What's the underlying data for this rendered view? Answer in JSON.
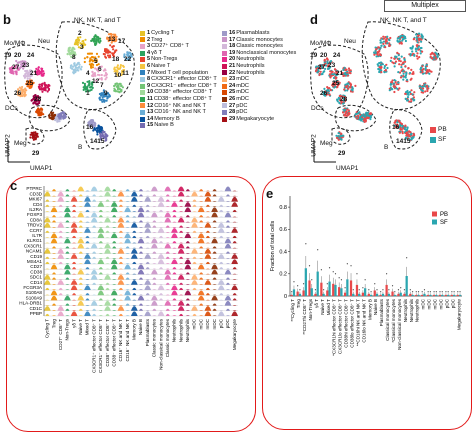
{
  "header": {
    "label": "Multiplex"
  },
  "panel_b": {
    "letter": "b",
    "xlabel": "UMAP1",
    "ylabel": "UMAP2",
    "group_labels": [
      "Mo/MΦ",
      "Neu",
      "NK, NK T, and T",
      "DCs",
      "Meg",
      "B"
    ],
    "cluster_numbers": [
      "19",
      "20",
      "24",
      "23",
      "21",
      "25",
      "27",
      "26",
      "28",
      "29",
      "16",
      "1415",
      "2",
      "3",
      "5",
      "4",
      "6",
      "8",
      "12",
      "7",
      "9",
      "1",
      "10",
      "11",
      "18",
      "13",
      "17",
      "22"
    ]
  },
  "legend": {
    "items": [
      {
        "num": "1",
        "label": "Cycling T",
        "color": "#e6c229"
      },
      {
        "num": "2",
        "label": "Treg",
        "color": "#f08c00"
      },
      {
        "num": "3",
        "label": "CD27⁺ CD8⁺ T",
        "color": "#e8a3c8"
      },
      {
        "num": "4",
        "label": "γδ T",
        "color": "#2ca25f"
      },
      {
        "num": "5",
        "label": "Non-Tregs",
        "color": "#e8432e"
      },
      {
        "num": "6",
        "label": "Naive T",
        "color": "#f5c542"
      },
      {
        "num": "7",
        "label": "Mixed T cell population",
        "color": "#3182bd"
      },
      {
        "num": "8",
        "label": "CX3CR1⁺ effector CD8⁺ T",
        "color": "#9ecae1"
      },
      {
        "num": "9",
        "label": "CX3CR1⁻ effector CD8⁺ T",
        "color": "#74c476"
      },
      {
        "num": "10",
        "label": "CD38⁺ effector CD8⁺ T",
        "color": "#a1d99b"
      },
      {
        "num": "11",
        "label": "CD38⁻ effector CD8⁺ T",
        "color": "#31a354"
      },
      {
        "num": "12",
        "label": "CD16⁺ NK and NK T",
        "color": "#fd8d3c"
      },
      {
        "num": "13",
        "label": "CD16⁻ NK and NK T",
        "color": "#6baed6"
      },
      {
        "num": "14",
        "label": "Memory B",
        "color": "#08519c"
      },
      {
        "num": "15",
        "label": "Naive B",
        "color": "#756bb1"
      },
      {
        "num": "16",
        "label": "Plasmablasts",
        "color": "#9e9ac8"
      },
      {
        "num": "17",
        "label": "Classic monocytes",
        "color": "#c994c7"
      },
      {
        "num": "18",
        "label": "Classic monocytes",
        "color": "#d4b9da"
      },
      {
        "num": "19",
        "label": "Nonclassical monocytes",
        "color": "#df65b0"
      },
      {
        "num": "20",
        "label": "Neutrophils",
        "color": "#e7298a"
      },
      {
        "num": "21",
        "label": "Neutrophils",
        "color": "#ce1256"
      },
      {
        "num": "22",
        "label": "Neutrophils",
        "color": "#980043"
      },
      {
        "num": "23",
        "label": "mDC",
        "color": "#fdae6b"
      },
      {
        "num": "24",
        "label": "mDC",
        "color": "#f16913"
      },
      {
        "num": "25",
        "label": "mDC",
        "color": "#d94801"
      },
      {
        "num": "26",
        "label": "mDC",
        "color": "#8c2d04"
      },
      {
        "num": "27",
        "label": "pDC",
        "color": "#bcbddc"
      },
      {
        "num": "28",
        "label": "pDC",
        "color": "#807dba"
      },
      {
        "num": "29",
        "label": "Megakaryocyte",
        "color": "#a50f15"
      }
    ]
  },
  "panel_d": {
    "letter": "d",
    "xlabel": "UMAP1",
    "ylabel": "UMAP2",
    "group_labels": [
      "Mo/MΦ",
      "Neu",
      "NK, NK T, and T",
      "DCs",
      "Meg",
      "B"
    ],
    "cluster_numbers": [
      "19",
      "20",
      "24",
      "23",
      "21",
      "25",
      "27",
      "26",
      "28",
      "29",
      "16",
      "1415"
    ],
    "legend": [
      {
        "label": "PB",
        "color": "#e8484a"
      },
      {
        "label": "SF",
        "color": "#2aa6b0"
      }
    ]
  },
  "panel_c": {
    "letter": "c",
    "genes": [
      "PTPRC",
      "CD3D",
      "MKI67",
      "CD4",
      "IL2RA",
      "FOXP3",
      "CD8A",
      "TRDV2",
      "CCR7",
      "IL7R",
      "KLRG1",
      "CX3CR1",
      "NCAM1",
      "CD19",
      "MS4A1",
      "CD27",
      "CD38",
      "SDC1",
      "CD14",
      "FCGR3A",
      "S100A8",
      "S100A9",
      "HLA-DRB1",
      "CD1C",
      "PPBP"
    ],
    "clusters": [
      "Cycling T",
      "Treg",
      "CD27⁺ CD8⁺ T",
      "Non-Tregs",
      "γδ T",
      "Naive T",
      "Mixed T",
      "CX3CR1⁺ effector CD8⁺ T",
      "CX3CR1⁻ effector CD8⁺ T",
      "CD38⁺ effector CD8⁺ T",
      "CD38⁻ effector CD8⁺ T",
      "CD16⁺ NK and NK T",
      "CD16⁻ NK and NK T",
      "Memory B",
      "Naive B",
      "Plasmablasts",
      "Classic monocytes",
      "Non-classical monocytes",
      "Classic monocytes",
      "Neutrophils",
      "Neutrophils",
      "Neutrophils",
      "mDC",
      "mDC",
      "mDC",
      "mDC",
      "pDC",
      "pDC",
      "Megakaryocyte"
    ]
  },
  "chart_data": {
    "type": "bar",
    "letter": "e",
    "ylabel": "Fraction of total cells",
    "ylim": [
      0,
      0.9
    ],
    "yticks": [
      0,
      0.2,
      0.4,
      0.6,
      0.8
    ],
    "ytick_labels": [
      "0",
      "0.2",
      "0.4",
      "0.6",
      "0.8"
    ],
    "legend_position": "top-right",
    "categories": [
      "**Cycling T",
      "Treg",
      "**CD27hi CD8⁺ T",
      "Non-Tregs",
      "γδ T",
      "Naive T",
      "Mixed T",
      "*CX3CR1hi effector CD8⁺ T",
      "CX3CR1lo effector CD8⁺ T",
      "CD38hi effector CD8⁺ T",
      "CD38lo effector CD8⁺ T",
      "**CD16hi NK and NK T",
      "CD16lo NK and NK T",
      "Memory B",
      "Naive B",
      "Plasmablasts",
      "Classical monocytes",
      "*Classical monocytes",
      "Non-classical monocytes",
      "Neutrophils",
      "Neutrophils",
      "Neutrophils",
      "mDC",
      "mDC",
      "mDC",
      "mDC",
      "pDC",
      "pDC",
      "Megakaryocyte"
    ],
    "series": [
      {
        "name": "PB",
        "color": "#e8484a",
        "values": [
          0.01,
          0.04,
          0.05,
          0.14,
          0.02,
          0.12,
          0.05,
          0.11,
          0.08,
          0.03,
          0.14,
          0.1,
          0.03,
          0.02,
          0.05,
          0.01,
          0.1,
          0.04,
          0.02,
          0.02,
          0.02,
          0.01,
          0.01,
          0.01,
          0.01,
          0.01,
          0.01,
          0.01,
          0.01
        ]
      },
      {
        "name": "SF",
        "color": "#2aa6b0",
        "values": [
          0.06,
          0.02,
          0.25,
          0.07,
          0.22,
          0.02,
          0.13,
          0.1,
          0.07,
          0.15,
          0.02,
          0.02,
          0.07,
          0.01,
          0.02,
          0.02,
          0.02,
          0.01,
          0.03,
          0.18,
          0.01,
          0.01,
          0.02,
          0.01,
          0.01,
          0.01,
          0.01,
          0.01,
          0.01
        ]
      }
    ]
  }
}
